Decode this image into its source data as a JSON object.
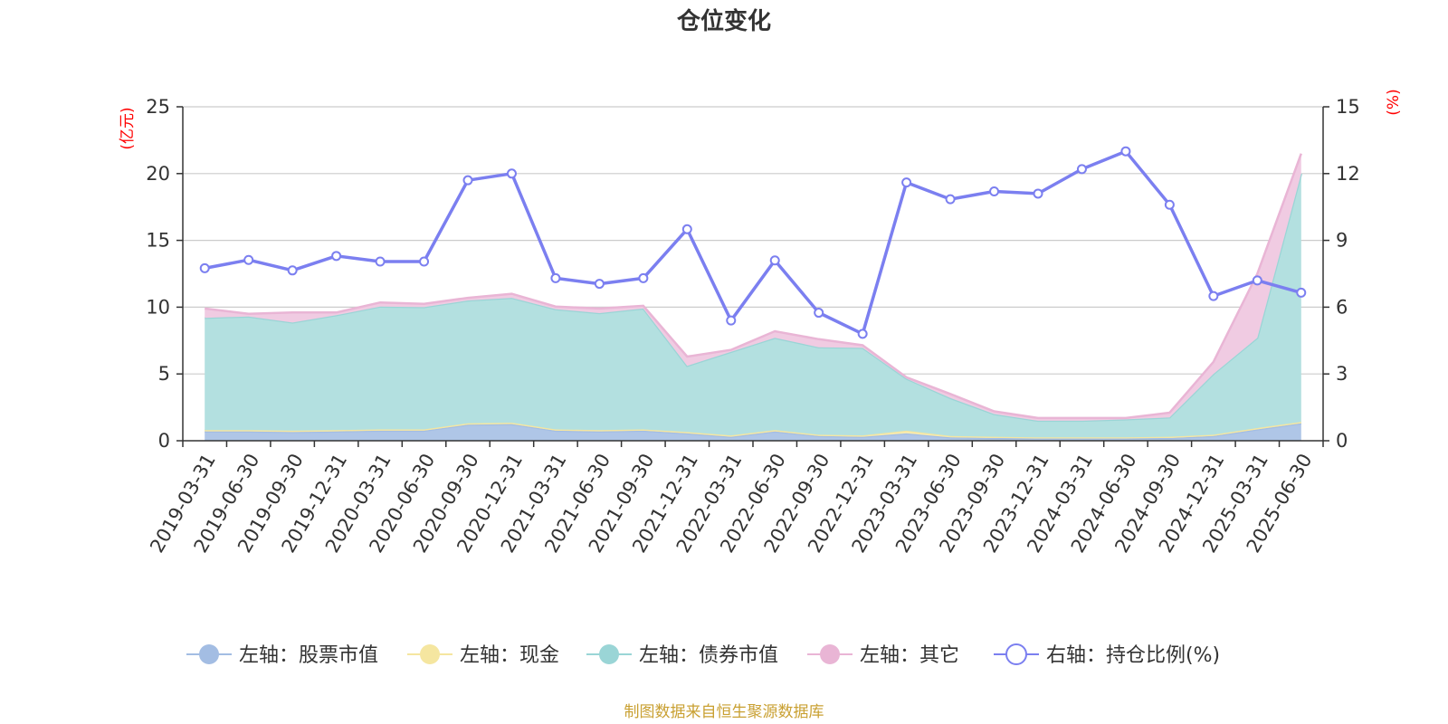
{
  "chart_data": {
    "type": "area",
    "title": "仓位变化",
    "left_unit": "(亿元)",
    "right_unit": "(%)",
    "left_ylim": [
      0,
      25
    ],
    "left_ticks": [
      "0",
      "5",
      "10",
      "15",
      "20",
      "25"
    ],
    "right_ylim": [
      0,
      15
    ],
    "right_ticks": [
      "0",
      "3",
      "6",
      "9",
      "12",
      "15"
    ],
    "categories": [
      "2019-03-31",
      "2019-06-30",
      "2019-09-30",
      "2019-12-31",
      "2020-03-31",
      "2020-06-30",
      "2020-09-30",
      "2020-12-31",
      "2021-03-31",
      "2021-06-30",
      "2021-09-30",
      "2021-12-31",
      "2022-03-31",
      "2022-06-30",
      "2022-09-30",
      "2022-12-31",
      "2023-03-31",
      "2023-06-30",
      "2023-09-30",
      "2023-12-31",
      "2024-03-31",
      "2024-06-30",
      "2024-09-30",
      "2024-12-31",
      "2025-03-31",
      "2025-06-30"
    ],
    "series": [
      {
        "name": "左轴：股票市值",
        "axis": "left",
        "kind": "stacked-area",
        "color": "#a3bde3",
        "fill": "#afc6e7",
        "values": [
          0.7,
          0.7,
          0.65,
          0.7,
          0.75,
          0.75,
          1.2,
          1.25,
          0.75,
          0.7,
          0.75,
          0.55,
          0.3,
          0.7,
          0.35,
          0.3,
          0.55,
          0.25,
          0.2,
          0.2,
          0.2,
          0.2,
          0.2,
          0.35,
          0.85,
          1.3
        ]
      },
      {
        "name": "左轴：现金",
        "axis": "left",
        "kind": "stacked-area",
        "color": "#f5e6a0",
        "fill": "#f7ebb3",
        "values": [
          0.1,
          0.1,
          0.1,
          0.1,
          0.1,
          0.1,
          0.1,
          0.1,
          0.1,
          0.1,
          0.1,
          0.1,
          0.1,
          0.1,
          0.1,
          0.1,
          0.2,
          0.1,
          0.1,
          0.05,
          0.05,
          0.05,
          0.1,
          0.1,
          0.1,
          0.1
        ]
      },
      {
        "name": "左轴：债券市值",
        "axis": "left",
        "kind": "stacked-area",
        "color": "#9ad5d6",
        "fill": "#b3e0e0",
        "values": [
          8.4,
          8.5,
          8.1,
          8.6,
          9.2,
          9.15,
          9.2,
          9.35,
          9.0,
          8.75,
          9.05,
          4.95,
          6.25,
          6.9,
          6.55,
          6.55,
          3.9,
          2.85,
          1.7,
          1.25,
          1.25,
          1.35,
          1.45,
          4.55,
          6.75,
          18.6
        ]
      },
      {
        "name": "左轴：其它",
        "axis": "left",
        "kind": "stacked-area",
        "color": "#e9b5d5",
        "fill": "#f0cbe2",
        "values": [
          0.7,
          0.2,
          0.75,
          0.2,
          0.3,
          0.25,
          0.2,
          0.3,
          0.2,
          0.35,
          0.2,
          0.7,
          0.15,
          0.5,
          0.6,
          0.2,
          0.1,
          0.3,
          0.2,
          0.2,
          0.2,
          0.1,
          0.35,
          0.9,
          4.8,
          1.5
        ]
      },
      {
        "name": "右轴：持仓比例(%)",
        "axis": "right",
        "kind": "line",
        "color": "#7b7ff0",
        "values": [
          7.75,
          8.12,
          7.65,
          8.3,
          8.05,
          8.05,
          11.7,
          12.0,
          7.3,
          7.05,
          7.3,
          9.5,
          5.4,
          8.1,
          5.75,
          4.8,
          11.6,
          10.85,
          11.2,
          11.1,
          12.2,
          13.0,
          10.6,
          6.5,
          7.2,
          6.65
        ]
      }
    ],
    "grid": true,
    "legend_position": "bottom"
  },
  "legend": [
    {
      "label": "左轴：股票市值",
      "marker": "filled-circle",
      "color": "#a3bde3"
    },
    {
      "label": "左轴：现金",
      "marker": "filled-circle",
      "color": "#f5e6a0"
    },
    {
      "label": "左轴：债券市值",
      "marker": "filled-circle",
      "color": "#9ad5d6"
    },
    {
      "label": "左轴：其它",
      "marker": "filled-circle",
      "color": "#e9b5d5"
    },
    {
      "label": "右轴：持仓比例(%)",
      "marker": "hollow-circle",
      "color": "#7b7ff0"
    }
  ],
  "source_text": "制图数据来自恒生聚源数据库"
}
